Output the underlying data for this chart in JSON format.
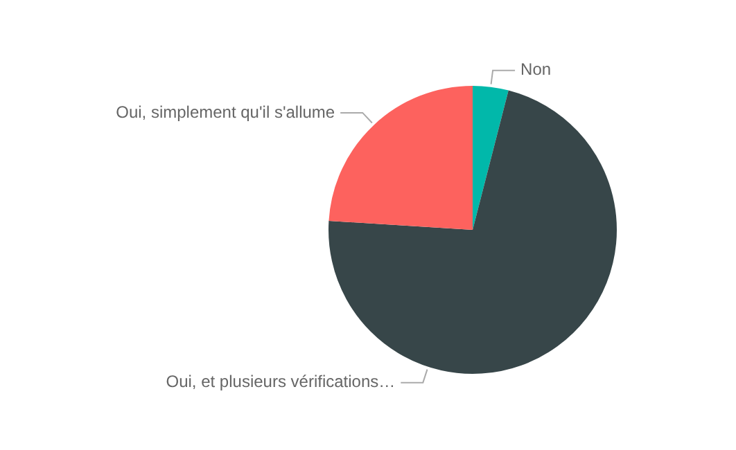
{
  "chart_data": {
    "type": "pie",
    "categories": [
      "Non",
      "Oui, et plusieurs vérifications…",
      "Oui, simplement qu'il s'allume"
    ],
    "values": [
      4,
      72,
      24
    ],
    "colors": [
      "#01b8aa",
      "#374649",
      "#fd625e"
    ],
    "legend": false
  }
}
